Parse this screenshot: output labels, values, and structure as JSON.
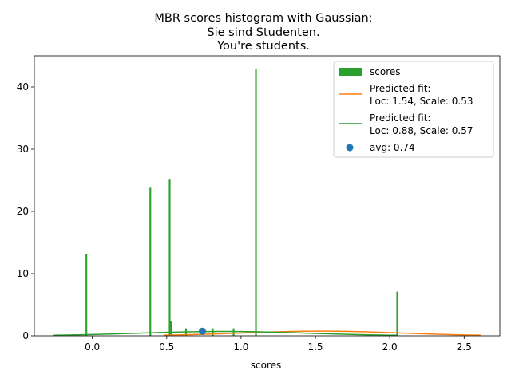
{
  "chart_data": {
    "type": "bar",
    "title_lines": [
      "MBR scores histogram with Gaussian:",
      "Sie sind Studenten.",
      "You're students."
    ],
    "xlabel": "scores",
    "ylabel": "",
    "xlim": [
      -0.39,
      2.74
    ],
    "ylim": [
      0,
      45
    ],
    "xticks": [
      0.0,
      0.5,
      1.0,
      1.5,
      2.0,
      2.5
    ],
    "xtick_labels": [
      "0.0",
      "0.5",
      "1.0",
      "1.5",
      "2.0",
      "2.5"
    ],
    "yticks": [
      0,
      10,
      20,
      30,
      40
    ],
    "ytick_labels": [
      "0",
      "10",
      "20",
      "30",
      "40"
    ],
    "grid": false,
    "legend_position": "top-right",
    "histogram": {
      "name": "scores",
      "color": "#2ca02c",
      "bin_width": 0.0115,
      "bins": [
        {
          "x": -0.04,
          "count": 13.1
        },
        {
          "x": 0.39,
          "count": 23.8
        },
        {
          "x": 0.52,
          "count": 25.1
        },
        {
          "x": 0.53,
          "count": 2.3
        },
        {
          "x": 0.63,
          "count": 1.2
        },
        {
          "x": 0.81,
          "count": 1.2
        },
        {
          "x": 0.95,
          "count": 1.2
        },
        {
          "x": 1.1,
          "count": 42.9
        },
        {
          "x": 2.05,
          "count": 7.1
        }
      ]
    },
    "fits": [
      {
        "label_lines": [
          "Predicted fit:",
          "Loc: 1.54, Scale: 0.53"
        ],
        "loc": 1.54,
        "scale": 0.53,
        "color": "#ff7f0e",
        "x_range": [
          0.48,
          2.61
        ]
      },
      {
        "label_lines": [
          "Predicted fit:",
          "Loc: 0.88, Scale: 0.57"
        ],
        "loc": 0.88,
        "scale": 0.57,
        "color": "#2ca02c",
        "x_range": [
          -0.26,
          2.05
        ]
      }
    ],
    "average": {
      "label": "avg: 0.74",
      "x": 0.74,
      "y": 0.74,
      "color": "#1f77b4"
    }
  }
}
